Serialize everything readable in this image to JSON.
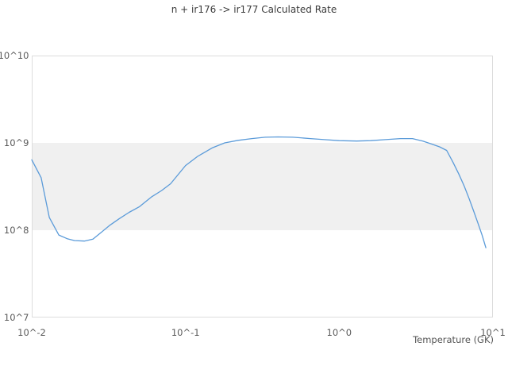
{
  "chart": {
    "title": "n + ir176 -> ir177 Calculated Rate",
    "xlabel": "Temperature (GK)"
  },
  "chart_data": {
    "type": "line",
    "title": "n + ir176 -> ir177 Calculated Rate",
    "xlabel": "Temperature (GK)",
    "ylabel": "",
    "x_scale": "log",
    "y_scale": "log",
    "xlim": [
      0.01,
      10
    ],
    "ylim": [
      10000000.0,
      10000000000.0
    ],
    "grid": "off",
    "legend_position": "none",
    "background_band": {
      "y_from": 100000000.0,
      "y_to": 1000000000.0,
      "color": "#f0f0f0"
    },
    "frame_color": "#dcdcdc",
    "x_ticks": [
      {
        "value": 0.01,
        "label": "10^-2"
      },
      {
        "value": 0.1,
        "label": "10^-1"
      },
      {
        "value": 1,
        "label": "10^0"
      },
      {
        "value": 10,
        "label": "10^1"
      }
    ],
    "y_ticks": [
      {
        "value": 10000000.0,
        "label": "10^7"
      },
      {
        "value": 100000000.0,
        "label": "10^8"
      },
      {
        "value": 1000000000.0,
        "label": "10^9"
      },
      {
        "value": 10000000000.0,
        "label": "10^10"
      }
    ],
    "series": [
      {
        "name": "calculated-rate",
        "color": "#5b9bd9",
        "x": [
          0.01,
          0.0115,
          0.013,
          0.015,
          0.017,
          0.019,
          0.022,
          0.025,
          0.028,
          0.032,
          0.037,
          0.043,
          0.05,
          0.06,
          0.07,
          0.08,
          0.1,
          0.12,
          0.15,
          0.18,
          0.22,
          0.27,
          0.33,
          0.4,
          0.5,
          0.65,
          0.8,
          1.0,
          1.3,
          1.6,
          2.0,
          2.5,
          3.0,
          3.5,
          4.0,
          4.5,
          5.0,
          5.5,
          6.0,
          6.5,
          7.0,
          7.5,
          8.0,
          8.5,
          9.0
        ],
        "y": [
          640000000.0,
          400000000.0,
          140000000.0,
          88000000.0,
          80000000.0,
          76000000.0,
          75000000.0,
          79000000.0,
          93000000.0,
          113000000.0,
          135000000.0,
          160000000.0,
          185000000.0,
          240000000.0,
          285000000.0,
          340000000.0,
          550000000.0,
          700000000.0,
          880000000.0,
          1000000000.0,
          1070000000.0,
          1120000000.0,
          1160000000.0,
          1170000000.0,
          1160000000.0,
          1120000000.0,
          1090000000.0,
          1060000000.0,
          1050000000.0,
          1060000000.0,
          1090000000.0,
          1120000000.0,
          1120000000.0,
          1050000000.0,
          970000000.0,
          900000000.0,
          820000000.0,
          600000000.0,
          440000000.0,
          320000000.0,
          230000000.0,
          165000000.0,
          120000000.0,
          88000000.0,
          63000000.0
        ]
      }
    ]
  }
}
